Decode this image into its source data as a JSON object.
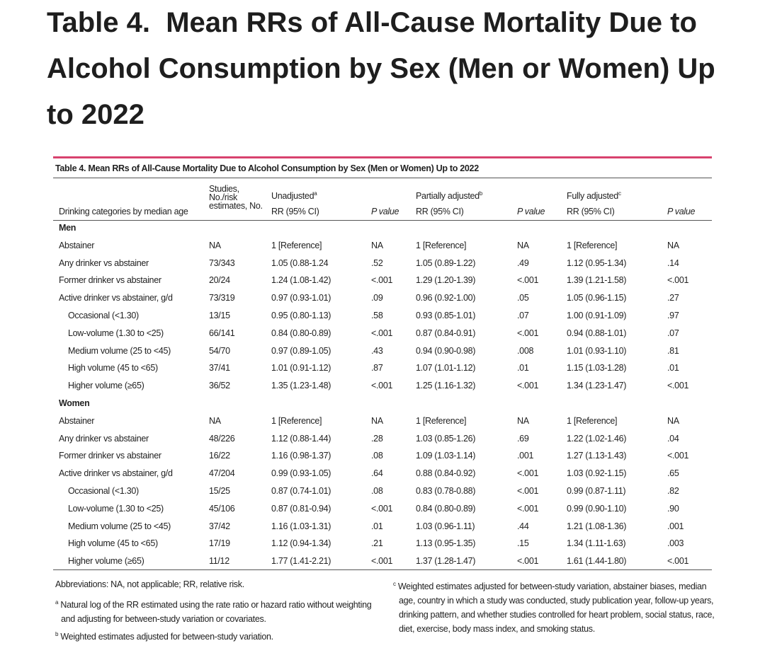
{
  "heading": "Table 4.  Mean RRs of All-Cause Mortality Due to Alcohol Consumption by Sex (Men or Women) Up to 2022",
  "table": {
    "caption": "Table 4. Mean RRs of All-Cause Mortality Due to Alcohol Consumption by Sex (Men or Women) Up to 2022",
    "header": {
      "category": "Drinking categories by median age",
      "studies": [
        "Studies,",
        "No./risk",
        "estimates, No."
      ],
      "groups": [
        {
          "label": "Unadjusted",
          "note": "a",
          "rr": "RR (95% CI)",
          "p": "P value"
        },
        {
          "label": "Partially adjusted",
          "note": "b",
          "rr": "RR (95% CI)",
          "p": "P value"
        },
        {
          "label": "Fully adjusted",
          "note": "c",
          "rr": "RR (95% CI)",
          "p": "P value"
        }
      ]
    },
    "sections": [
      {
        "title": "Men",
        "rows": [
          [
            "Abstainer",
            "NA",
            "1 [Reference]",
            "NA",
            "1 [Reference]",
            "NA",
            "1 [Reference]",
            "NA"
          ],
          [
            "Any drinker vs abstainer",
            "73/343",
            "1.05 (0.88-1.24",
            ".52",
            "1.05 (0.89-1.22)",
            ".49",
            "1.12 (0.95-1.34)",
            ".14"
          ],
          [
            "Former drinker vs abstainer",
            "20/24",
            "1.24 (1.08-1.42)",
            "<.001",
            "1.29 (1.20-1.39)",
            "<.001",
            "1.39 (1.21-1.58)",
            "<.001"
          ],
          [
            "Active drinker vs abstainer, g/d",
            "73/319",
            "0.97 (0.93-1.01)",
            ".09",
            "0.96 (0.92-1.00)",
            ".05",
            "1.05 (0.96-1.15)",
            ".27"
          ],
          [
            "Occasional (<1.30)",
            "13/15",
            "0.95 (0.80-1.13)",
            ".58",
            "0.93 (0.85-1.01)",
            ".07",
            "1.00 (0.91-1.09)",
            ".97"
          ],
          [
            "Low-volume (1.30 to <25)",
            "66/141",
            "0.84 (0.80-0.89)",
            "<.001",
            "0.87 (0.84-0.91)",
            "<.001",
            "0.94 (0.88-1.01)",
            ".07"
          ],
          [
            "Medium volume (25 to <45)",
            "54/70",
            "0.97 (0.89-1.05)",
            ".43",
            "0.94 (0.90-0.98)",
            ".008",
            "1.01 (0.93-1.10)",
            ".81"
          ],
          [
            "High volume (45 to <65)",
            "37/41",
            "1.01 (0.91-1.12)",
            ".87",
            "1.07 (1.01-1.12)",
            ".01",
            "1.15 (1.03-1.28)",
            ".01"
          ],
          [
            "Higher volume (≥65)",
            "36/52",
            "1.35 (1.23-1.48)",
            "<.001",
            "1.25 (1.16-1.32)",
            "<.001",
            "1.34 (1.23-1.47)",
            "<.001"
          ]
        ]
      },
      {
        "title": "Women",
        "rows": [
          [
            "Abstainer",
            "NA",
            "1 [Reference]",
            "NA",
            "1 [Reference]",
            "NA",
            "1 [Reference]",
            "NA"
          ],
          [
            "Any drinker vs abstainer",
            "48/226",
            "1.12 (0.88-1.44)",
            ".28",
            "1.03 (0.85-1.26)",
            ".69",
            "1.22 (1.02-1.46)",
            ".04"
          ],
          [
            "Former drinker vs abstainer",
            "16/22",
            "1.16 (0.98-1.37)",
            ".08",
            "1.09 (1.03-1.14)",
            ".001",
            "1.27 (1.13-1.43)",
            "<.001"
          ],
          [
            "Active drinker vs abstainer, g/d",
            "47/204",
            "0.99 (0.93-1.05)",
            ".64",
            "0.88 (0.84-0.92)",
            "<.001",
            "1.03 (0.92-1.15)",
            ".65"
          ],
          [
            "Occasional (<1.30)",
            "15/25",
            "0.87 (0.74-1.01)",
            ".08",
            "0.83 (0.78-0.88)",
            "<.001",
            "0.99 (0.87-1.11)",
            ".82"
          ],
          [
            "Low-volume (1.30 to <25)",
            "45/106",
            "0.87 (0.81-0.94)",
            "<.001",
            "0.84 (0.80-0.89)",
            "<.001",
            "0.99 (0.90-1.10)",
            ".90"
          ],
          [
            "Medium volume (25 to <45)",
            "37/42",
            "1.16 (1.03-1.31)",
            ".01",
            "1.03 (0.96-1.11)",
            ".44",
            "1.21 (1.08-1.36)",
            ".001"
          ],
          [
            "High volume (45 to <65)",
            "17/19",
            "1.12 (0.94-1.34)",
            ".21",
            "1.13 (0.95-1.35)",
            ".15",
            "1.34 (1.11-1.63)",
            ".003"
          ],
          [
            "Higher volume (≥65)",
            "11/12",
            "1.77 (1.41-2.21)",
            "<.001",
            "1.37 (1.28-1.47)",
            "<.001",
            "1.61 (1.44-1.80)",
            "<.001"
          ]
        ]
      }
    ],
    "footnotes": {
      "abbreviations": "Abbreviations: NA, not applicable; RR, relative risk.",
      "notes": [
        {
          "marker": "a",
          "text": "Natural log of the RR estimated using the rate ratio or hazard ratio without weighting and adjusting for between-study variation or covariates."
        },
        {
          "marker": "b",
          "text": "Weighted estimates adjusted for between-study variation."
        },
        {
          "marker": "c",
          "text": "Weighted estimates adjusted for between-study variation, abstainer biases, median age, country in which a study was conducted, study publication year, follow-up years, drinking pattern, and whether studies controlled for heart problem, social status, race, diet, exercise, body mass index, and smoking status."
        }
      ]
    }
  }
}
